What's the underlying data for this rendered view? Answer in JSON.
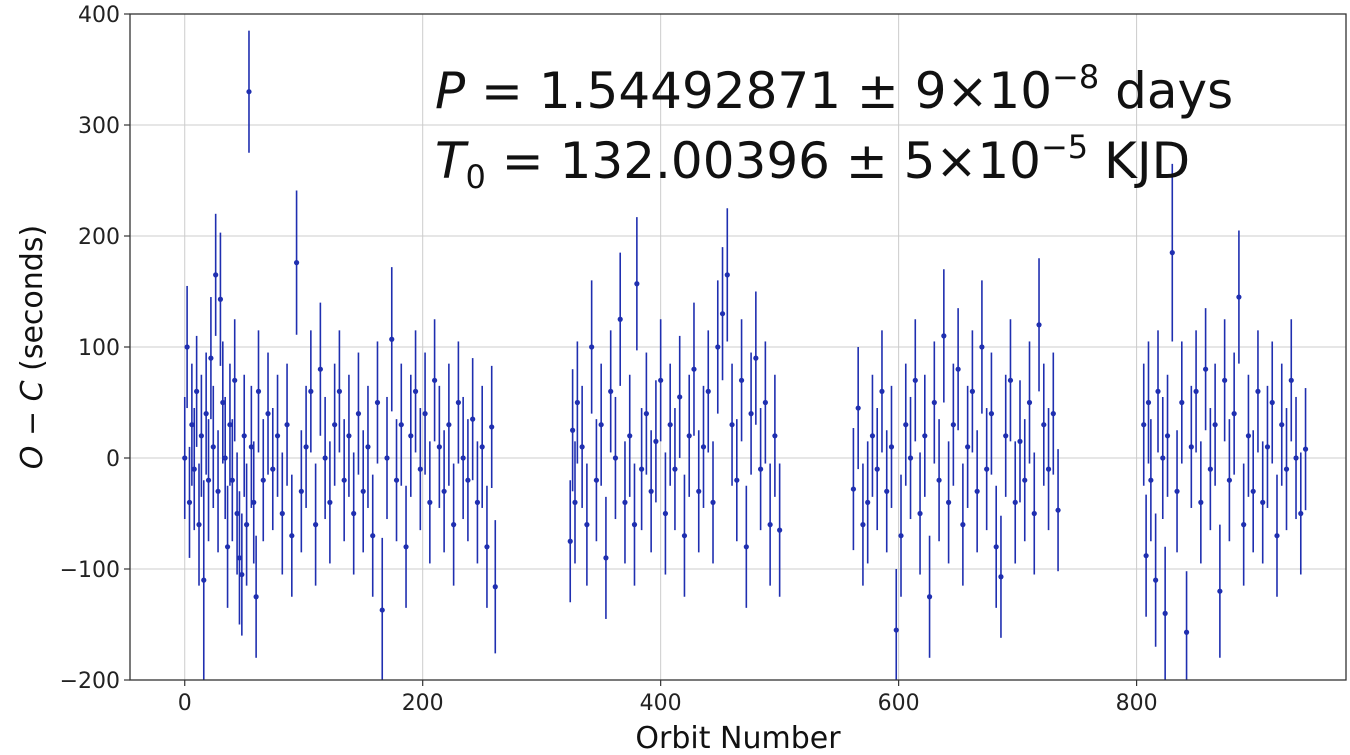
{
  "chart_data": {
    "type": "scatter",
    "xlabel": "Orbit Number",
    "ylabel_parts": {
      "a": "O",
      "minus": " − ",
      "b": "C",
      "rest": " (seconds)"
    },
    "xlim": [
      -46,
      976
    ],
    "ylim": [
      -200,
      400
    ],
    "xticks": [
      0,
      200,
      400,
      600,
      800
    ],
    "yticks": [
      -200,
      -100,
      0,
      100,
      200,
      300,
      400
    ],
    "grid": true,
    "marker_color": "#1f2fb0",
    "annotation": {
      "line1": {
        "sym": "P",
        "rest": " = 1.54492871 ± 9×10",
        "exp": "−8",
        "tail": " days"
      },
      "line2": {
        "sym": "T",
        "sub": "0",
        "rest": " = 132.00396 ± 5×10",
        "exp": "−5",
        "tail": " KJD"
      }
    },
    "points": [
      [
        0,
        0,
        55
      ],
      [
        2,
        100,
        55
      ],
      [
        4,
        -40,
        50
      ],
      [
        6,
        30,
        55
      ],
      [
        8,
        -10,
        55
      ],
      [
        10,
        60,
        50
      ],
      [
        12,
        -60,
        55
      ],
      [
        14,
        20,
        55
      ],
      [
        16,
        -110,
        90
      ],
      [
        18,
        40,
        55
      ],
      [
        20,
        -20,
        55
      ],
      [
        22,
        90,
        55
      ],
      [
        24,
        10,
        55
      ],
      [
        26,
        165,
        55
      ],
      [
        28,
        -30,
        55
      ],
      [
        30,
        143,
        60
      ],
      [
        32,
        50,
        55
      ],
      [
        34,
        0,
        55
      ],
      [
        36,
        -80,
        55
      ],
      [
        38,
        30,
        55
      ],
      [
        40,
        -20,
        55
      ],
      [
        42,
        70,
        55
      ],
      [
        44,
        -50,
        55
      ],
      [
        46,
        -90,
        60
      ],
      [
        48,
        -105,
        55
      ],
      [
        50,
        20,
        55
      ],
      [
        52,
        -60,
        55
      ],
      [
        54,
        330,
        55
      ],
      [
        56,
        10,
        55
      ],
      [
        58,
        -40,
        55
      ],
      [
        60,
        -125,
        55
      ],
      [
        62,
        60,
        55
      ],
      [
        66,
        -20,
        55
      ],
      [
        70,
        40,
        55
      ],
      [
        74,
        -10,
        55
      ],
      [
        78,
        20,
        55
      ],
      [
        82,
        -50,
        55
      ],
      [
        86,
        30,
        55
      ],
      [
        90,
        -70,
        55
      ],
      [
        94,
        176,
        65
      ],
      [
        98,
        -30,
        55
      ],
      [
        102,
        10,
        55
      ],
      [
        106,
        60,
        55
      ],
      [
        110,
        -60,
        55
      ],
      [
        114,
        80,
        60
      ],
      [
        118,
        0,
        55
      ],
      [
        122,
        -40,
        55
      ],
      [
        126,
        30,
        55
      ],
      [
        130,
        60,
        55
      ],
      [
        134,
        -20,
        55
      ],
      [
        138,
        20,
        55
      ],
      [
        142,
        -50,
        55
      ],
      [
        146,
        40,
        55
      ],
      [
        150,
        -30,
        55
      ],
      [
        154,
        10,
        55
      ],
      [
        158,
        -70,
        55
      ],
      [
        162,
        50,
        55
      ],
      [
        166,
        -137,
        65
      ],
      [
        170,
        0,
        55
      ],
      [
        174,
        107,
        65
      ],
      [
        178,
        -20,
        55
      ],
      [
        182,
        30,
        55
      ],
      [
        186,
        -80,
        55
      ],
      [
        190,
        20,
        55
      ],
      [
        194,
        60,
        55
      ],
      [
        198,
        -10,
        55
      ],
      [
        202,
        40,
        55
      ],
      [
        206,
        -40,
        55
      ],
      [
        210,
        70,
        55
      ],
      [
        214,
        10,
        55
      ],
      [
        218,
        -30,
        55
      ],
      [
        222,
        30,
        55
      ],
      [
        226,
        -60,
        55
      ],
      [
        230,
        50,
        55
      ],
      [
        234,
        0,
        55
      ],
      [
        238,
        -20,
        55
      ],
      [
        242,
        35,
        55
      ],
      [
        246,
        -40,
        55
      ],
      [
        250,
        10,
        55
      ],
      [
        254,
        -80,
        55
      ],
      [
        258,
        28,
        55
      ],
      [
        261,
        -116,
        60
      ],
      [
        324,
        -75,
        55
      ],
      [
        326,
        25,
        55
      ],
      [
        328,
        -40,
        55
      ],
      [
        330,
        50,
        55
      ],
      [
        334,
        10,
        55
      ],
      [
        338,
        -60,
        55
      ],
      [
        342,
        100,
        60
      ],
      [
        346,
        -20,
        55
      ],
      [
        350,
        30,
        55
      ],
      [
        354,
        -90,
        55
      ],
      [
        358,
        60,
        55
      ],
      [
        362,
        0,
        55
      ],
      [
        366,
        125,
        60
      ],
      [
        370,
        -40,
        55
      ],
      [
        374,
        20,
        55
      ],
      [
        378,
        -60,
        55
      ],
      [
        380,
        157,
        60
      ],
      [
        384,
        -10,
        55
      ],
      [
        388,
        40,
        55
      ],
      [
        392,
        -30,
        55
      ],
      [
        396,
        15,
        55
      ],
      [
        400,
        70,
        55
      ],
      [
        404,
        -50,
        55
      ],
      [
        408,
        30,
        55
      ],
      [
        412,
        -10,
        55
      ],
      [
        416,
        55,
        55
      ],
      [
        420,
        -70,
        55
      ],
      [
        424,
        20,
        55
      ],
      [
        428,
        80,
        60
      ],
      [
        432,
        -30,
        55
      ],
      [
        436,
        10,
        55
      ],
      [
        440,
        60,
        55
      ],
      [
        444,
        -40,
        55
      ],
      [
        448,
        100,
        60
      ],
      [
        452,
        130,
        60
      ],
      [
        456,
        165,
        60
      ],
      [
        460,
        30,
        55
      ],
      [
        464,
        -20,
        55
      ],
      [
        468,
        70,
        55
      ],
      [
        472,
        -80,
        55
      ],
      [
        476,
        40,
        55
      ],
      [
        480,
        90,
        60
      ],
      [
        484,
        -10,
        55
      ],
      [
        488,
        50,
        55
      ],
      [
        492,
        -60,
        55
      ],
      [
        496,
        20,
        55
      ],
      [
        500,
        -65,
        60
      ],
      [
        562,
        -28,
        55
      ],
      [
        566,
        45,
        55
      ],
      [
        570,
        -60,
        55
      ],
      [
        574,
        -40,
        55
      ],
      [
        578,
        20,
        55
      ],
      [
        582,
        -10,
        55
      ],
      [
        586,
        60,
        55
      ],
      [
        590,
        -30,
        55
      ],
      [
        594,
        10,
        55
      ],
      [
        598,
        -155,
        55
      ],
      [
        602,
        -70,
        55
      ],
      [
        606,
        30,
        55
      ],
      [
        610,
        0,
        55
      ],
      [
        614,
        70,
        55
      ],
      [
        618,
        -50,
        55
      ],
      [
        622,
        20,
        55
      ],
      [
        626,
        -125,
        55
      ],
      [
        630,
        50,
        55
      ],
      [
        634,
        -20,
        55
      ],
      [
        638,
        110,
        60
      ],
      [
        642,
        -40,
        55
      ],
      [
        646,
        30,
        55
      ],
      [
        650,
        80,
        55
      ],
      [
        654,
        -60,
        55
      ],
      [
        658,
        10,
        55
      ],
      [
        662,
        60,
        55
      ],
      [
        666,
        -30,
        55
      ],
      [
        670,
        100,
        60
      ],
      [
        674,
        -10,
        55
      ],
      [
        678,
        40,
        55
      ],
      [
        682,
        -80,
        55
      ],
      [
        686,
        -107,
        55
      ],
      [
        690,
        20,
        55
      ],
      [
        694,
        70,
        55
      ],
      [
        698,
        -40,
        55
      ],
      [
        702,
        15,
        55
      ],
      [
        706,
        -20,
        55
      ],
      [
        710,
        50,
        55
      ],
      [
        714,
        -50,
        55
      ],
      [
        718,
        120,
        60
      ],
      [
        722,
        30,
        55
      ],
      [
        726,
        -10,
        55
      ],
      [
        730,
        40,
        55
      ],
      [
        734,
        -47,
        55
      ],
      [
        806,
        30,
        55
      ],
      [
        808,
        -88,
        55
      ],
      [
        810,
        50,
        55
      ],
      [
        812,
        -20,
        55
      ],
      [
        816,
        -110,
        60
      ],
      [
        818,
        60,
        55
      ],
      [
        822,
        0,
        55
      ],
      [
        824,
        -140,
        60
      ],
      [
        826,
        20,
        55
      ],
      [
        830,
        185,
        80
      ],
      [
        834,
        -30,
        55
      ],
      [
        838,
        50,
        55
      ],
      [
        842,
        -157,
        55
      ],
      [
        846,
        10,
        55
      ],
      [
        850,
        60,
        55
      ],
      [
        854,
        -40,
        55
      ],
      [
        858,
        80,
        55
      ],
      [
        862,
        -10,
        55
      ],
      [
        866,
        30,
        55
      ],
      [
        870,
        -120,
        60
      ],
      [
        874,
        70,
        55
      ],
      [
        878,
        -20,
        55
      ],
      [
        882,
        40,
        55
      ],
      [
        886,
        145,
        60
      ],
      [
        890,
        -60,
        55
      ],
      [
        894,
        20,
        55
      ],
      [
        898,
        -30,
        55
      ],
      [
        902,
        60,
        55
      ],
      [
        906,
        -40,
        55
      ],
      [
        910,
        10,
        55
      ],
      [
        914,
        50,
        55
      ],
      [
        918,
        -70,
        55
      ],
      [
        922,
        30,
        55
      ],
      [
        926,
        -10,
        55
      ],
      [
        930,
        70,
        55
      ],
      [
        934,
        0,
        55
      ],
      [
        938,
        -50,
        55
      ],
      [
        942,
        8,
        55
      ]
    ]
  }
}
